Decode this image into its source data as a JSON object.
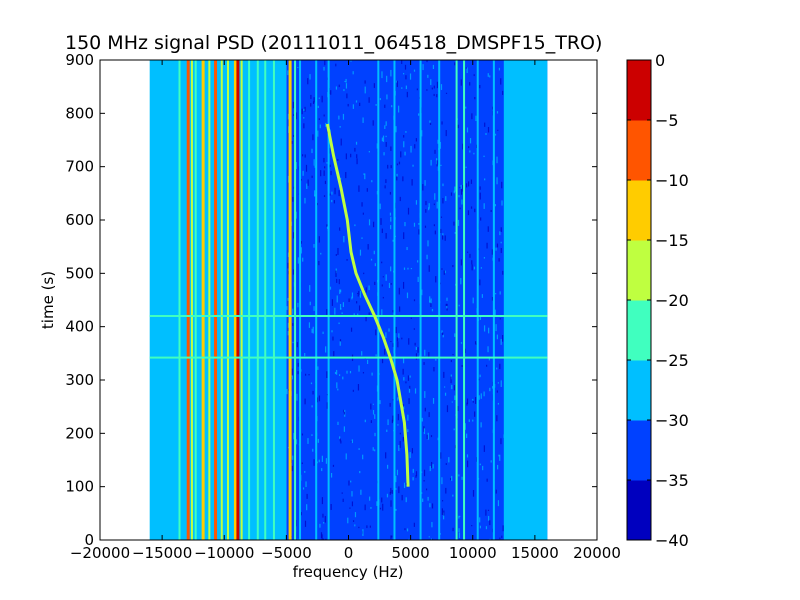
{
  "chart_data": {
    "type": "heatmap",
    "title": "150 MHz signal PSD (20111011_064518_DMSPF15_TRO)",
    "xlabel": "frequency (Hz)",
    "ylabel": "time (s)",
    "xlim": [
      -20000,
      20000
    ],
    "ylim": [
      0,
      900
    ],
    "x_ticks": [
      -20000,
      -15000,
      -10000,
      -5000,
      0,
      5000,
      10000,
      15000,
      20000
    ],
    "y_ticks": [
      0,
      100,
      200,
      300,
      400,
      500,
      600,
      700,
      800,
      900
    ],
    "x_tick_labels": [
      "−20000",
      "−15000",
      "−10000",
      "−5000",
      "0",
      "5000",
      "10000",
      "15000",
      "20000"
    ],
    "y_tick_labels": [
      "0",
      "100",
      "200",
      "300",
      "400",
      "500",
      "600",
      "700",
      "800",
      "900"
    ],
    "data_extent_x": [
      -16000,
      16000
    ],
    "colorbar": {
      "levels": [
        -40,
        -35,
        -30,
        -25,
        -20,
        -15,
        -10,
        -5,
        0
      ],
      "tick_labels": [
        "−40",
        "−35",
        "−30",
        "−25",
        "−20",
        "−15",
        "−10",
        "−5",
        "0"
      ],
      "colors": [
        "#0000bf",
        "#0041ff",
        "#00bfff",
        "#40ffbf",
        "#bfff40",
        "#ffcc00",
        "#ff5500",
        "#cc0000"
      ]
    },
    "regions": [
      {
        "x": [
          -16000,
          -5000
        ],
        "level": -28
      },
      {
        "x": [
          -5000,
          16000
        ],
        "level": -33
      },
      {
        "x": [
          12500,
          16000
        ],
        "level": -28
      }
    ],
    "vertical_lines": [
      {
        "x": -13600,
        "level": -23
      },
      {
        "x": -12900,
        "level": -8
      },
      {
        "x": -12600,
        "level": -18
      },
      {
        "x": -12300,
        "level": -23
      },
      {
        "x": -11700,
        "level": -13
      },
      {
        "x": -11200,
        "level": -18
      },
      {
        "x": -10700,
        "level": -8
      },
      {
        "x": -10200,
        "level": -18
      },
      {
        "x": -9700,
        "level": -18
      },
      {
        "x": -9100,
        "level": -13
      },
      {
        "x": -8900,
        "level": -3
      },
      {
        "x": -8600,
        "level": -18
      },
      {
        "x": -8000,
        "level": -23
      },
      {
        "x": -7300,
        "level": -23
      },
      {
        "x": -6700,
        "level": -23
      },
      {
        "x": -6000,
        "level": -23
      },
      {
        "x": -4700,
        "level": -13
      },
      {
        "x": -4300,
        "level": -23
      },
      {
        "x": -3900,
        "level": -28
      },
      {
        "x": -2600,
        "level": -28
      },
      {
        "x": -1600,
        "level": -28
      },
      {
        "x": 2400,
        "level": -28
      },
      {
        "x": 3700,
        "level": -28
      },
      {
        "x": 5800,
        "level": -28
      },
      {
        "x": 7300,
        "level": -28
      },
      {
        "x": 8700,
        "level": -23
      },
      {
        "x": 9300,
        "level": -23
      },
      {
        "x": 10400,
        "level": -28
      },
      {
        "x": 11700,
        "level": -28
      },
      {
        "x": 13000,
        "level": -28
      },
      {
        "x": 14400,
        "level": -28
      }
    ],
    "horizontal_lines": [
      {
        "y": 342,
        "level": -23
      },
      {
        "y": 420,
        "level": -23
      }
    ],
    "traces": [
      {
        "level": -20,
        "points": [
          [
            -1700,
            780
          ],
          [
            -1200,
            720
          ],
          [
            -600,
            660
          ],
          [
            -100,
            600
          ],
          [
            200,
            540
          ],
          [
            600,
            500
          ],
          [
            1300,
            460
          ],
          [
            2100,
            420
          ],
          [
            2800,
            380
          ],
          [
            3400,
            340
          ],
          [
            3900,
            300
          ],
          [
            4200,
            260
          ],
          [
            4500,
            220
          ],
          [
            4700,
            160
          ],
          [
            4800,
            100
          ]
        ]
      }
    ]
  }
}
